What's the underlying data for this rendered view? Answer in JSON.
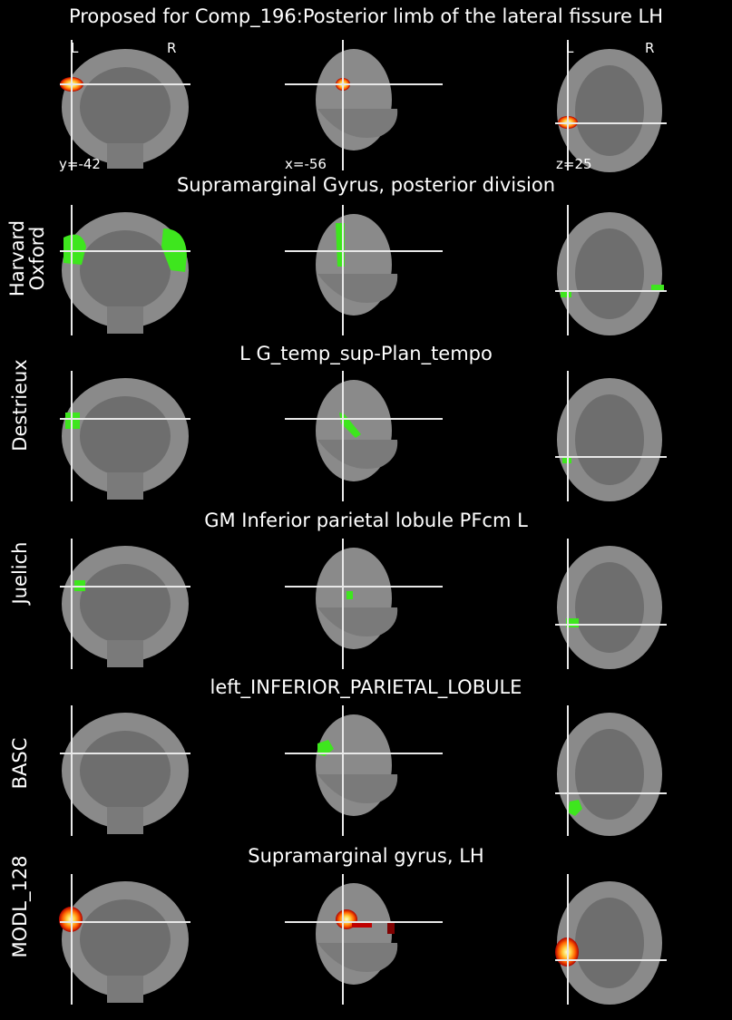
{
  "title": "Proposed for Comp_196:Posterior limb of the lateral fissure LH",
  "orientation": {
    "left": "L",
    "right": "R"
  },
  "coords": {
    "y": "y=-42",
    "x": "x=-56",
    "z": "z=25"
  },
  "rows": [
    {
      "atlas": "",
      "label": ""
    },
    {
      "atlas": "Harvard\nOxford",
      "label": "Supramarginal Gyrus, posterior division"
    },
    {
      "atlas": "Destrieux",
      "label": "L G_temp_sup-Plan_tempo"
    },
    {
      "atlas": "Juelich",
      "label": "GM Inferior parietal lobule PFcm L"
    },
    {
      "atlas": "BASC",
      "label": "left_INFERIOR_PARIETAL_LOBULE"
    },
    {
      "atlas": "MODL_128",
      "label": "Supramarginal gyrus, LH"
    }
  ],
  "colors": {
    "background": "#000000",
    "brain": "#8a8a8a",
    "crosshair": "#e8e8e8",
    "atlas_overlay": "#3ee61e",
    "activation_hot": "#ffff80",
    "activation_mid": "#ff8000",
    "activation_low": "#c00000"
  }
}
